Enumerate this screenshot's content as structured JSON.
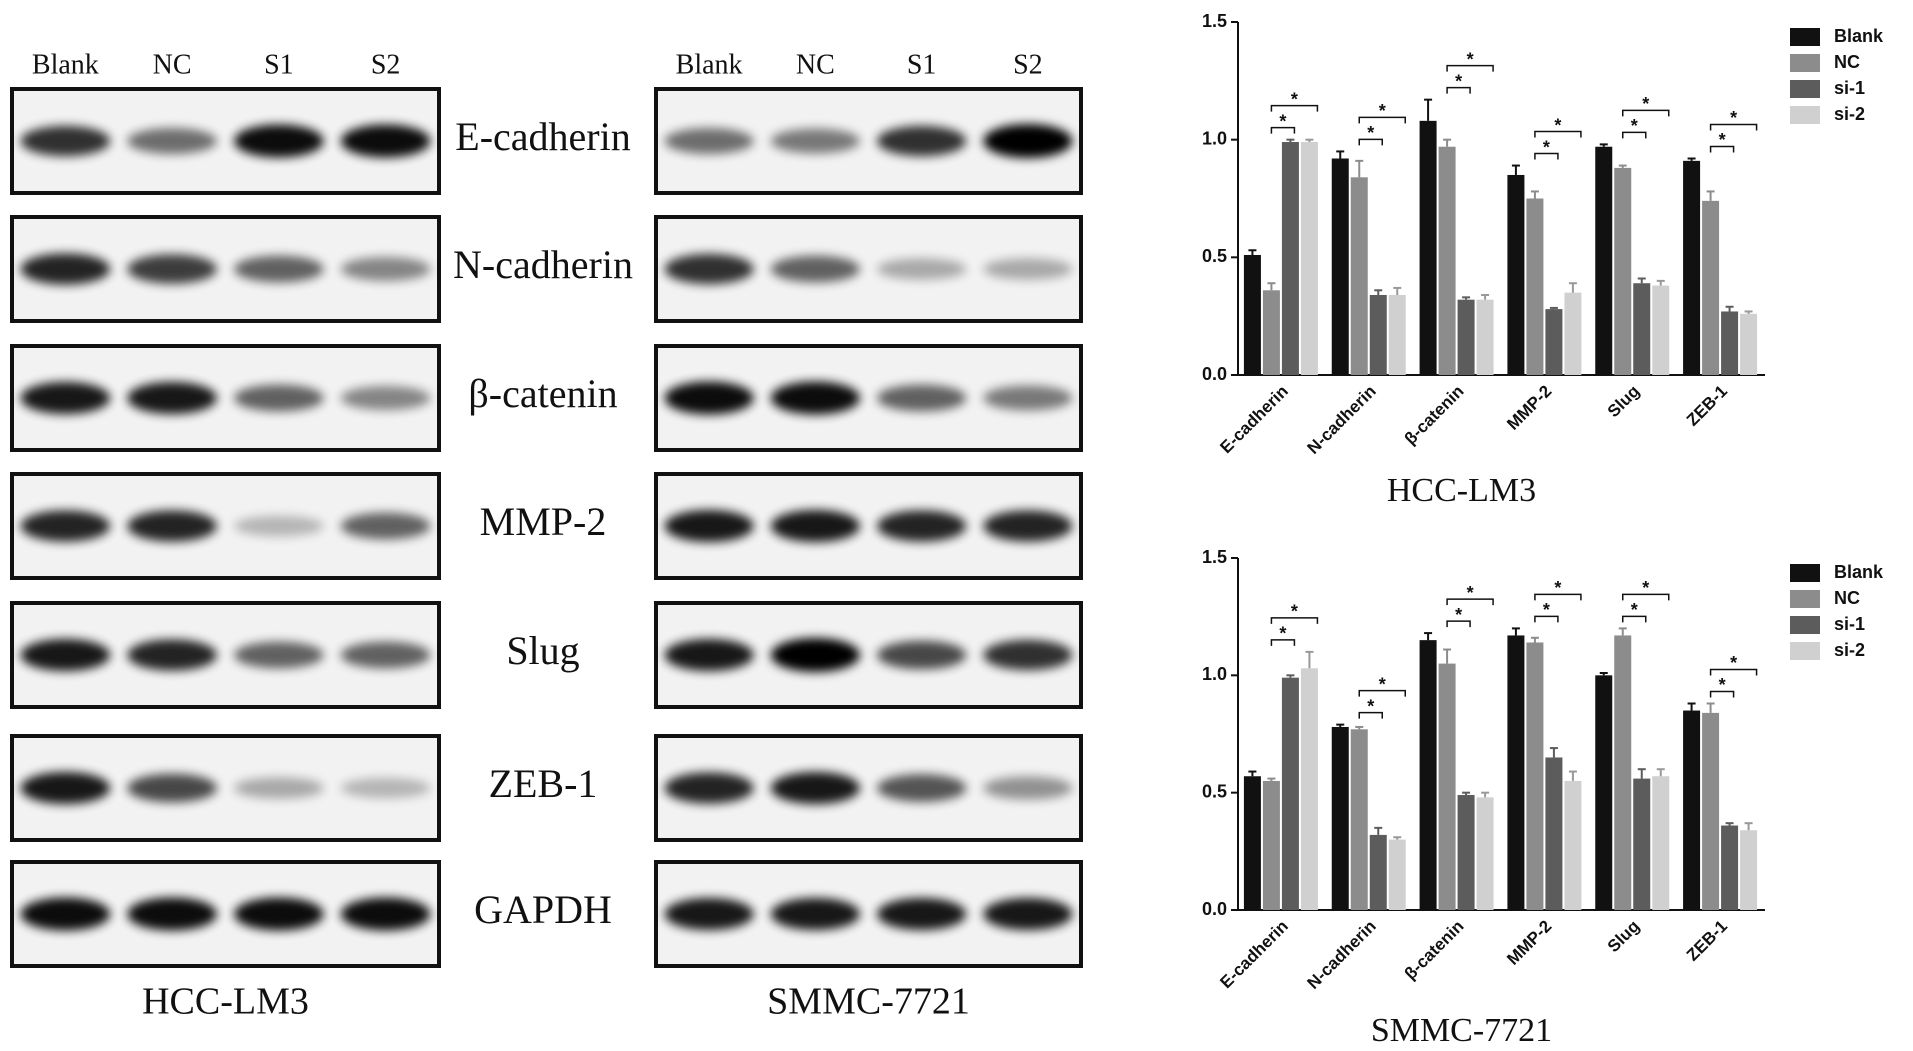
{
  "blots": {
    "lanes": [
      "Blank",
      "NC",
      "S1",
      "S2"
    ],
    "proteins": [
      "E-cadherin",
      "N-cadherin",
      "β-catenin",
      "MMP-2",
      "Slug",
      "ZEB-1",
      "GAPDH"
    ],
    "cell_lines": [
      "HCC-LM3",
      "SMMC-7721"
    ]
  },
  "chart_data": [
    {
      "type": "bar",
      "xlabel": "HCC-LM3",
      "categories": [
        "E-cadherin",
        "N-cadherin",
        "β-catenin",
        "MMP-2",
        "Slug",
        "ZEB-1"
      ],
      "series": [
        {
          "name": "Blank",
          "color": "#111111",
          "values": [
            0.51,
            0.92,
            1.08,
            0.85,
            0.97,
            0.91
          ],
          "errors": [
            0.02,
            0.03,
            0.09,
            0.04,
            0.01,
            0.01
          ]
        },
        {
          "name": "NC",
          "color": "#8c8c8c",
          "values": [
            0.36,
            0.84,
            0.97,
            0.75,
            0.88,
            0.74
          ],
          "errors": [
            0.03,
            0.07,
            0.03,
            0.03,
            0.01,
            0.04
          ]
        },
        {
          "name": "si-1",
          "color": "#5c5c5c",
          "values": [
            0.99,
            0.34,
            0.32,
            0.28,
            0.39,
            0.27
          ],
          "errors": [
            0.01,
            0.02,
            0.01,
            0.005,
            0.02,
            0.02
          ]
        },
        {
          "name": "si-2",
          "color": "#d0d0d0",
          "values": [
            0.99,
            0.34,
            0.32,
            0.35,
            0.38,
            0.26
          ],
          "errors": [
            0.01,
            0.03,
            0.02,
            0.04,
            0.02,
            0.01
          ]
        }
      ],
      "ylim": [
        0,
        1.5
      ],
      "yticks": [
        {
          "value": 0,
          "label": "0.0"
        },
        0.5,
        {
          "value": 1,
          "label": "1.0"
        },
        1.5
      ],
      "annotation": "*",
      "legend": "upper right"
    },
    {
      "type": "bar",
      "xlabel": "SMMC-7721",
      "categories": [
        "E-cadherin",
        "N-cadherin",
        "β-catenin",
        "MMP-2",
        "Slug",
        "ZEB-1"
      ],
      "series": [
        {
          "name": "Blank",
          "color": "#111111",
          "values": [
            0.57,
            0.78,
            1.15,
            1.17,
            1.0,
            0.85
          ],
          "errors": [
            0.02,
            0.01,
            0.03,
            0.03,
            0.01,
            0.03
          ]
        },
        {
          "name": "NC",
          "color": "#8c8c8c",
          "values": [
            0.55,
            0.77,
            1.05,
            1.14,
            1.17,
            0.84
          ],
          "errors": [
            0.01,
            0.01,
            0.06,
            0.02,
            0.03,
            0.04
          ]
        },
        {
          "name": "si-1",
          "color": "#5c5c5c",
          "values": [
            0.99,
            0.32,
            0.49,
            0.65,
            0.56,
            0.36
          ],
          "errors": [
            0.01,
            0.03,
            0.01,
            0.04,
            0.04,
            0.01
          ]
        },
        {
          "name": "si-2",
          "color": "#d0d0d0",
          "values": [
            1.03,
            0.3,
            0.48,
            0.55,
            0.57,
            0.34
          ],
          "errors": [
            0.07,
            0.01,
            0.02,
            0.04,
            0.03,
            0.03
          ]
        }
      ],
      "ylim": [
        0,
        1.5
      ],
      "yticks": [
        {
          "value": 0,
          "label": "0.0"
        },
        0.5,
        {
          "value": 1,
          "label": "1.0"
        },
        1.5
      ],
      "annotation": "*",
      "legend": "upper right"
    }
  ]
}
